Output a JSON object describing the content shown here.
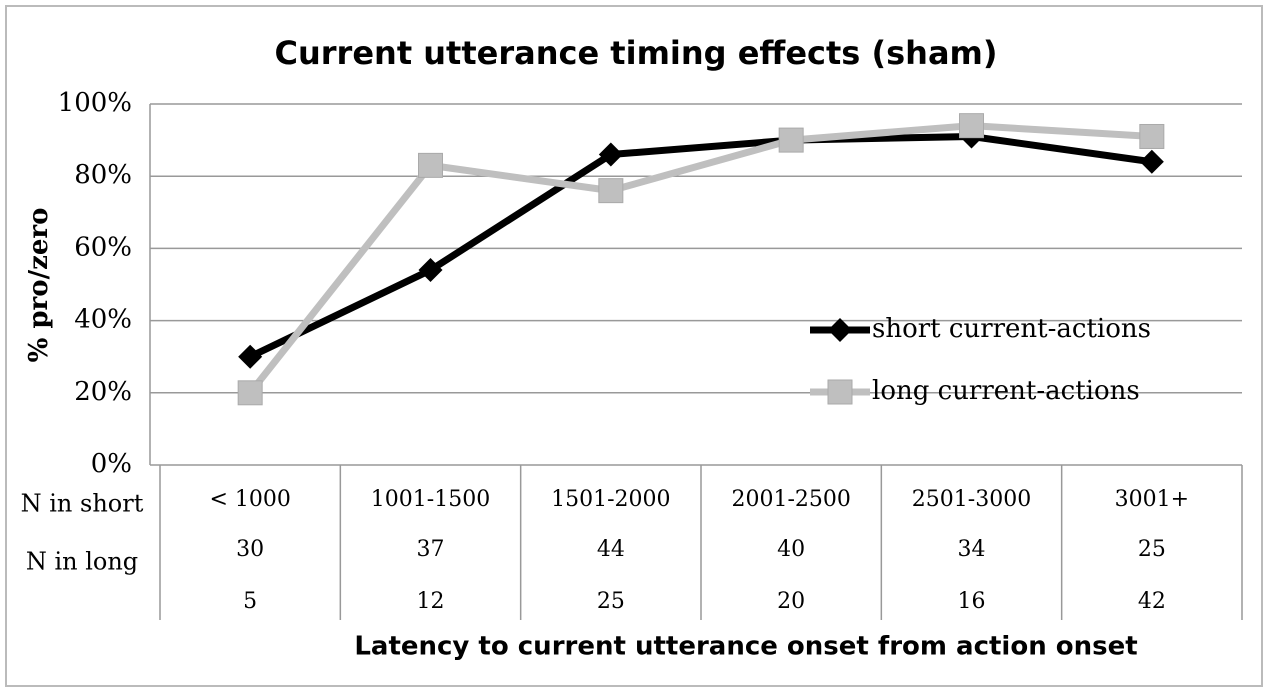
{
  "chart_data": {
    "type": "line",
    "title": "Current utterance timing effects (sham)",
    "y_label": "% pro/zero",
    "x_label": "Latency to current utterance onset from action onset",
    "categories": [
      "< 1000",
      "1001-1500",
      "1501-2000",
      "2001-2500",
      "2501-3000",
      "3001+"
    ],
    "series": [
      {
        "name": "short current-actions",
        "color": "#000000",
        "marker": "diamond",
        "values": [
          30,
          54,
          86,
          90,
          91,
          84
        ]
      },
      {
        "name": "long current-actions",
        "color": "#bfbfbf",
        "marker": "square",
        "values": [
          20,
          83,
          76,
          90,
          94,
          91
        ]
      }
    ],
    "ylim": [
      0,
      100
    ],
    "yticks": [
      {
        "value": 0,
        "label": "0%"
      },
      {
        "value": 20,
        "label": "20%"
      },
      {
        "value": 40,
        "label": "40%"
      },
      {
        "value": 60,
        "label": "60%"
      },
      {
        "value": 80,
        "label": "80%"
      },
      {
        "value": 100,
        "label": "100%"
      }
    ],
    "grid": true,
    "legend": "right",
    "table": {
      "rows": [
        {
          "label": "N in short",
          "values": [
            30,
            37,
            44,
            40,
            34,
            25
          ]
        },
        {
          "label": "N in long",
          "values": [
            5,
            12,
            25,
            20,
            16,
            42
          ]
        }
      ]
    }
  }
}
